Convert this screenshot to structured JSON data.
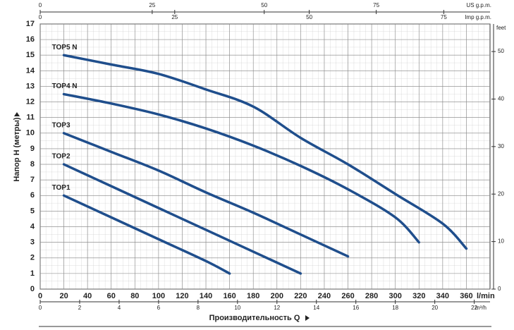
{
  "chart_data": {
    "type": "line",
    "x_label": "Производительность Q",
    "y_label": "Напор H (метры)",
    "x_unit": "l/min",
    "xlim": [
      0,
      380
    ],
    "xticks": [
      0,
      20,
      40,
      60,
      80,
      100,
      120,
      140,
      160,
      180,
      200,
      220,
      240,
      260,
      280,
      300,
      320,
      340,
      360
    ],
    "ylim": [
      0,
      17
    ],
    "yticks": [
      0,
      1,
      2,
      3,
      4,
      5,
      6,
      7,
      8,
      9,
      10,
      11,
      12,
      13,
      14,
      15,
      16,
      17
    ],
    "grid": true,
    "m3h_axis": {
      "unit": "m³/h",
      "xlim": [
        0,
        22.8
      ],
      "xticks": [
        0,
        2,
        4,
        6,
        8,
        10,
        12,
        14,
        16,
        18,
        20,
        22
      ]
    },
    "us_gpm_axis": {
      "unit": "US g.p.m.",
      "xlim": [
        0,
        100.4
      ],
      "xticks": [
        0,
        25,
        50,
        75
      ]
    },
    "imp_gpm_axis": {
      "unit": "Imp g.p.m.",
      "xlim": [
        0,
        83.6
      ],
      "xticks": [
        0,
        25,
        50,
        75
      ]
    },
    "feet_axis": {
      "unit": "feet",
      "ylim": [
        0,
        55.8
      ],
      "yticks": [
        0,
        10,
        20,
        30,
        40,
        50
      ]
    },
    "series": [
      {
        "name": "TOP1",
        "color": "#1f4e8c",
        "x": [
          20,
          60,
          100,
          140,
          160
        ],
        "values": [
          6,
          4.6,
          3.2,
          1.8,
          1.0
        ]
      },
      {
        "name": "TOP2",
        "color": "#1f4e8c",
        "x": [
          20,
          60,
          100,
          140,
          180,
          220
        ],
        "values": [
          8,
          6.6,
          5.2,
          3.8,
          2.4,
          1.0
        ]
      },
      {
        "name": "TOP3",
        "color": "#1f4e8c",
        "x": [
          20,
          60,
          100,
          140,
          180,
          220,
          260
        ],
        "values": [
          10,
          8.8,
          7.6,
          6.2,
          4.9,
          3.5,
          2.1
        ]
      },
      {
        "name": "TOP4 N",
        "color": "#1f4e8c",
        "x": [
          20,
          60,
          100,
          140,
          180,
          220,
          260,
          300,
          320
        ],
        "values": [
          12.5,
          11.9,
          11.2,
          10.3,
          9.2,
          7.9,
          6.4,
          4.6,
          3.0
        ]
      },
      {
        "name": "TOP5 N",
        "color": "#1f4e8c",
        "x": [
          20,
          60,
          100,
          140,
          180,
          220,
          260,
          300,
          340,
          360
        ],
        "values": [
          15,
          14.4,
          13.8,
          12.8,
          11.7,
          9.7,
          8.0,
          6.1,
          4.2,
          2.6
        ]
      }
    ]
  }
}
